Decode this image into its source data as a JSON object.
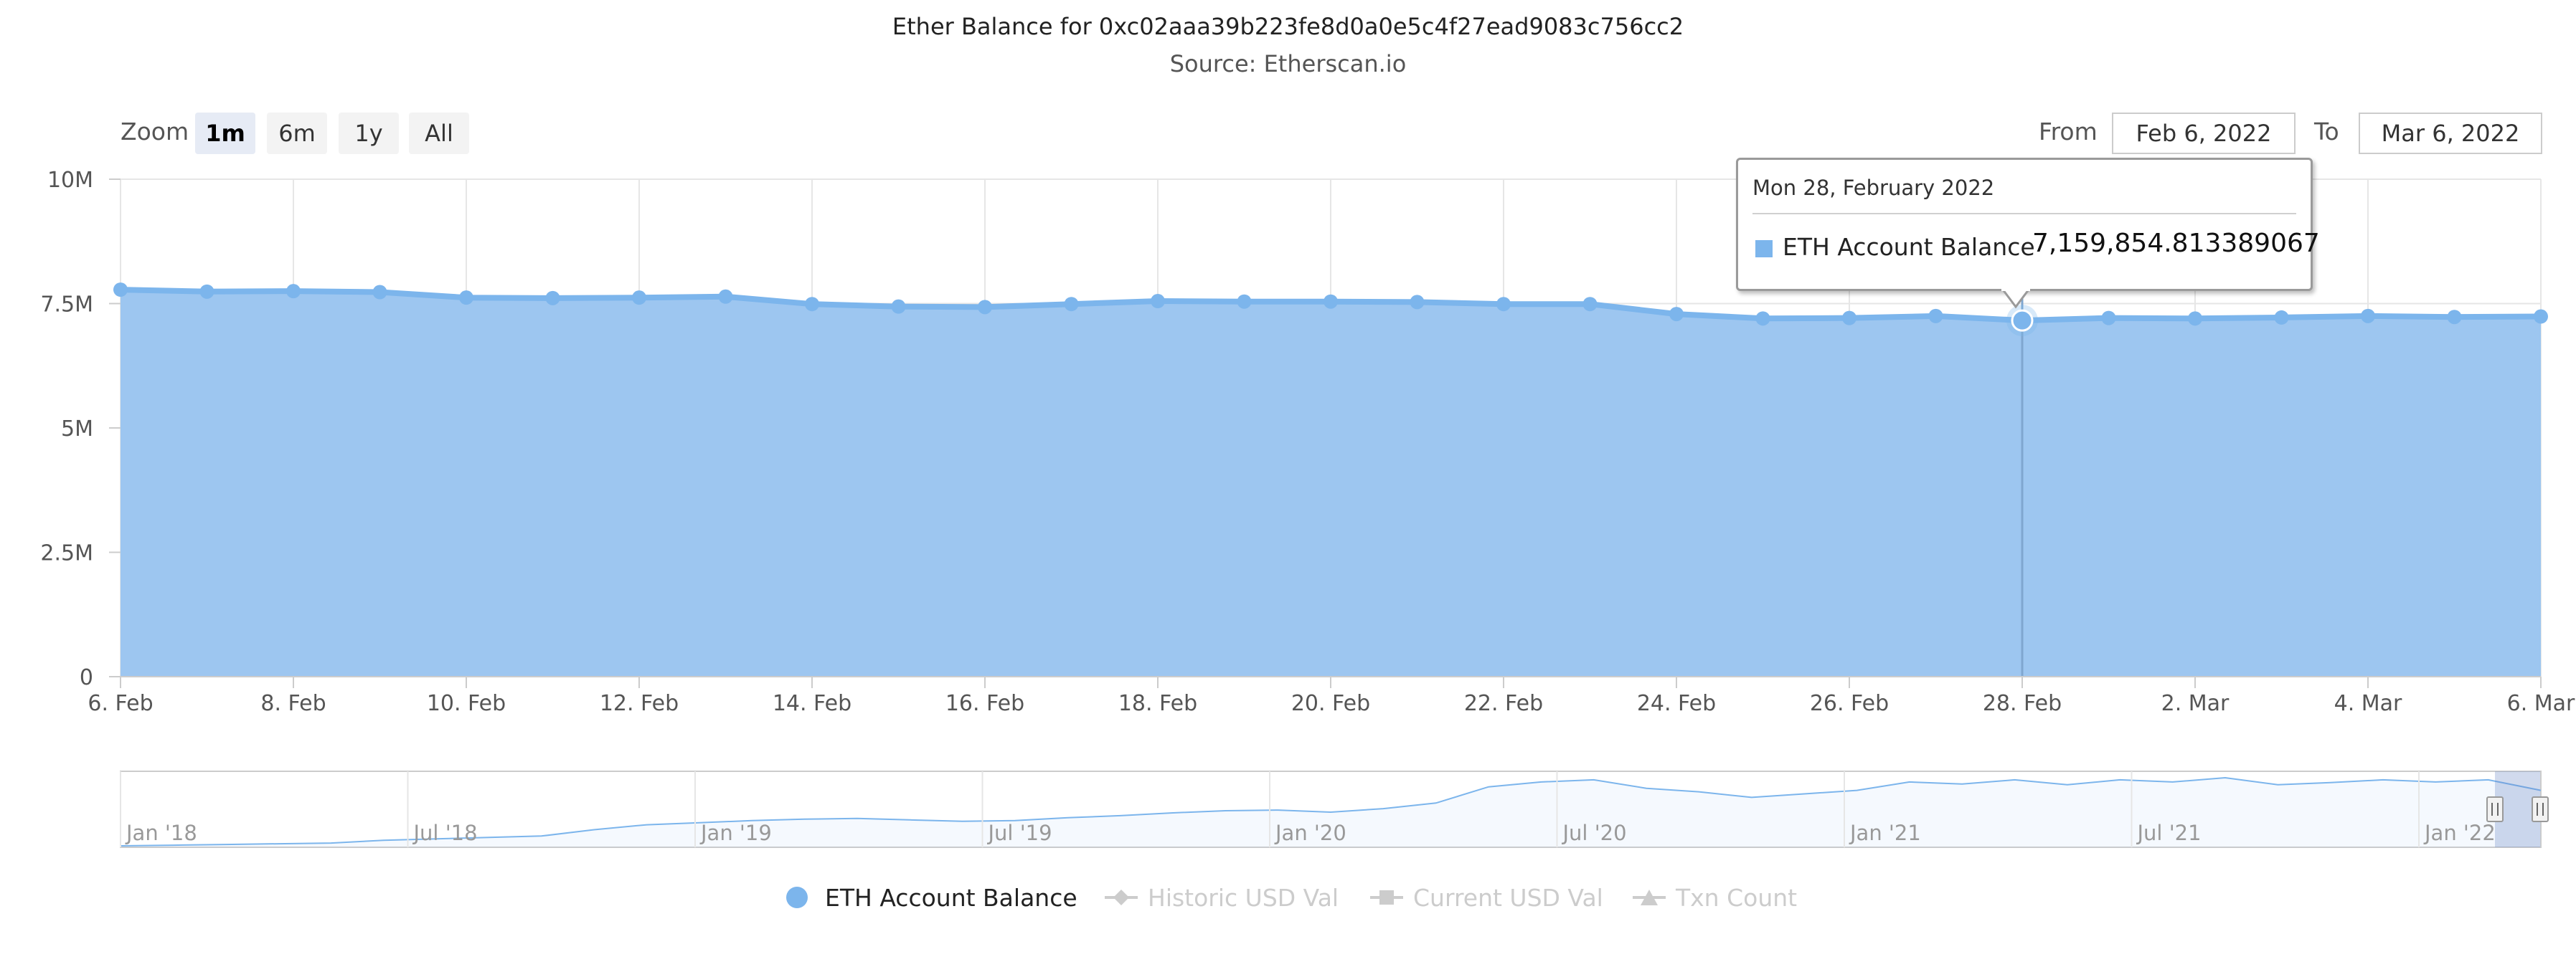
{
  "header": {
    "title": "Ether Balance for 0xc02aaa39b223fe8d0a0e5c4f27ead9083c756cc2",
    "subtitle": "Source: Etherscan.io"
  },
  "zoom": {
    "label": "Zoom",
    "buttons": [
      "1m",
      "6m",
      "1y",
      "All"
    ],
    "active": "1m"
  },
  "range": {
    "from_label": "From",
    "from_value": "Feb 6, 2022",
    "to_label": "To",
    "to_value": "Mar 6, 2022"
  },
  "colors": {
    "series": "#7cb5ec",
    "area": "#9dc6f0",
    "grid": "#e6e6e6",
    "legend_hidden": "#cccccc"
  },
  "chart_data": {
    "type": "area",
    "ylim": [
      0,
      10000000
    ],
    "yticks": [
      "0",
      "2.5M",
      "5M",
      "7.5M",
      "10M"
    ],
    "xtick_labels": [
      "6. Feb",
      "8. Feb",
      "10. Feb",
      "12. Feb",
      "14. Feb",
      "16. Feb",
      "18. Feb",
      "20. Feb",
      "22. Feb",
      "24. Feb",
      "26. Feb",
      "28. Feb",
      "2. Mar",
      "4. Mar",
      "6. Mar"
    ],
    "x": [
      "2022-02-06",
      "2022-02-07",
      "2022-02-08",
      "2022-02-09",
      "2022-02-10",
      "2022-02-11",
      "2022-02-12",
      "2022-02-13",
      "2022-02-14",
      "2022-02-15",
      "2022-02-16",
      "2022-02-17",
      "2022-02-18",
      "2022-02-19",
      "2022-02-20",
      "2022-02-21",
      "2022-02-22",
      "2022-02-23",
      "2022-02-24",
      "2022-02-25",
      "2022-02-26",
      "2022-02-27",
      "2022-02-28",
      "2022-03-01",
      "2022-03-02",
      "2022-03-03",
      "2022-03-04",
      "2022-03-05",
      "2022-03-06"
    ],
    "series": [
      {
        "name": "ETH Account Balance",
        "values": [
          7780000,
          7740000,
          7750000,
          7730000,
          7620000,
          7610000,
          7620000,
          7640000,
          7490000,
          7440000,
          7430000,
          7490000,
          7550000,
          7540000,
          7540000,
          7530000,
          7490000,
          7490000,
          7290000,
          7200000,
          7210000,
          7250000,
          7159854.813389067,
          7210000,
          7200000,
          7220000,
          7250000,
          7230000,
          7240000
        ]
      }
    ],
    "tooltip": {
      "date": "Mon 28, February 2022",
      "series": "ETH Account Balance",
      "value": "7,159,854.813389067",
      "x": "2022-02-28"
    },
    "navigator": {
      "labels": [
        "Jan '18",
        "Jul '18",
        "Jan '19",
        "Jul '19",
        "Jan '20",
        "Jul '20",
        "Jan '21",
        "Jul '21",
        "Jan '22"
      ],
      "values": [
        0.2,
        0.3,
        0.4,
        0.5,
        0.6,
        1.0,
        1.2,
        1.4,
        1.6,
        2.5,
        3.2,
        3.5,
        3.8,
        4.0,
        4.1,
        3.9,
        3.7,
        3.8,
        4.2,
        4.5,
        4.9,
        5.2,
        5.3,
        5.0,
        5.5,
        6.3,
        8.6,
        9.3,
        9.6,
        8.4,
        7.9,
        7.1,
        7.6,
        8.1,
        9.3,
        9.0,
        9.6,
        8.9,
        9.6,
        9.3,
        9.9,
        8.9,
        9.2,
        9.6,
        9.3,
        9.6,
        8.1
      ]
    }
  },
  "legend": [
    {
      "name": "ETH Account Balance",
      "visible": true,
      "icon": "circle-marker-icon"
    },
    {
      "name": "Historic USD Val",
      "visible": false,
      "icon": "diamond-marker-icon"
    },
    {
      "name": "Current USD Val",
      "visible": false,
      "icon": "square-marker-icon"
    },
    {
      "name": "Txn Count",
      "visible": false,
      "icon": "triangle-marker-icon"
    }
  ]
}
